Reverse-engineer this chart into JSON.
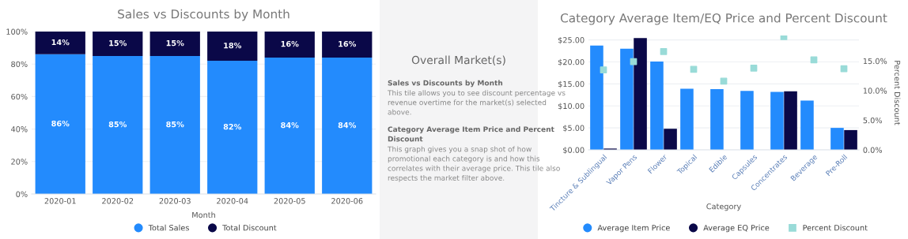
{
  "chart_data": [
    {
      "type": "bar",
      "title": "Sales vs Discounts by Month",
      "xlabel": "Month",
      "stacked": true,
      "categories": [
        "2020-01",
        "2020-02",
        "2020-03",
        "2020-04",
        "2020-05",
        "2020-06"
      ],
      "series": [
        {
          "name": "Total Sales",
          "color": "#238bfd",
          "values": [
            86,
            85,
            85,
            82,
            84,
            84
          ],
          "value_labels": [
            "86%",
            "85%",
            "85%",
            "82%",
            "84%",
            "84%"
          ]
        },
        {
          "name": "Total Discount",
          "color": "#0a0848",
          "values": [
            14,
            15,
            15,
            18,
            16,
            16
          ],
          "value_labels": [
            "14%",
            "15%",
            "15%",
            "18%",
            "16%",
            "16%"
          ]
        }
      ],
      "ylim": [
        0,
        100
      ],
      "yticks": [
        {
          "value": 0,
          "label": "0%"
        },
        {
          "value": 20,
          "label": "20%"
        },
        {
          "value": 40,
          "label": "40%"
        },
        {
          "value": 60,
          "label": "60%"
        },
        {
          "value": 80,
          "label": "80%"
        },
        {
          "value": 100,
          "label": "100%"
        }
      ],
      "grid": "y",
      "legend": "bottom"
    },
    {
      "type": "other",
      "title": "Overall Market(s)",
      "annotations": [
        "Sales vs Discounts by Month",
        "This tile allows you to see discount percentage vs revenue overtime for the market(s) selected above.",
        "Category Average Item Price and Percent Discount",
        "This graph gives you a snap shot of how promotional each category is and how this correlates with their average price. This tile also respects the market filter above."
      ]
    },
    {
      "type": "bar",
      "title": "Category Average Item/EQ Price and Percent Discount",
      "xlabel": "Category",
      "y2label": "Percent Discount",
      "categories": [
        "Tincture & Sublingual",
        "Vapor Pens",
        "Flower",
        "Topical",
        "Edible",
        "Capsules",
        "Concentrates",
        "Beverage",
        "Pre-Roll"
      ],
      "series": [
        {
          "name": "Average Item Price",
          "color": "#238bfd",
          "values": [
            23.7,
            23.0,
            20.1,
            13.9,
            13.8,
            13.4,
            13.2,
            11.2,
            5.0
          ]
        },
        {
          "name": "Average EQ Price",
          "color": "#0a0848",
          "values": [
            0.3,
            25.4,
            4.8,
            null,
            null,
            null,
            13.3,
            null,
            4.5
          ]
        },
        {
          "name": "Percent Discount",
          "type": "scatter",
          "axis": "y2",
          "marker": "square",
          "color": "#99dbd8",
          "values": [
            13.5,
            14.9,
            16.6,
            13.6,
            11.6,
            13.8,
            19.1,
            15.2,
            13.7
          ]
        }
      ],
      "ylim": [
        0,
        26
      ],
      "yticks": [
        {
          "value": 0,
          "label": "$0.00"
        },
        {
          "value": 5,
          "label": "$5.00"
        },
        {
          "value": 10,
          "label": "$10.00"
        },
        {
          "value": 15,
          "label": "$15.00"
        },
        {
          "value": 20,
          "label": "$20.00"
        },
        {
          "value": 25,
          "label": "$25.00"
        }
      ],
      "y2lim": [
        0,
        19.3
      ],
      "y2ticks": [
        {
          "value": 0,
          "label": "0.0%"
        },
        {
          "value": 5,
          "label": "5.0%"
        },
        {
          "value": 10,
          "label": "10.0%"
        },
        {
          "value": 15,
          "label": "15.0%"
        }
      ],
      "grid": "y",
      "legend": "bottom"
    }
  ]
}
